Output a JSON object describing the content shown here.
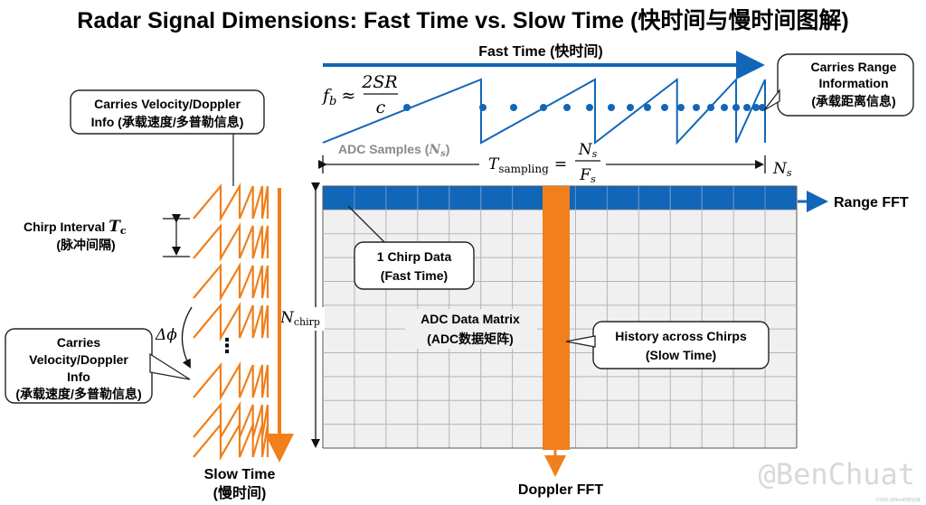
{
  "title": "Radar Signal Dimensions: Fast Time vs. Slow Time (快时间与慢时间图解)",
  "fast_time": {
    "label": "Fast Time (快时间)"
  },
  "formula_fb": {
    "lhs": "f",
    "sub": "b",
    "approx": "≈",
    "numerator": "2SR",
    "denominator": "c"
  },
  "adc_samples": {
    "label": "ADC Samples (",
    "symbol": "N",
    "sub": "s",
    "close": ")"
  },
  "t_sampling": {
    "lhs": "T",
    "sub": "sampling",
    "eq": "=",
    "num": "N",
    "num_sub": "s",
    "den": "F",
    "den_sub": "s"
  },
  "ns_label": {
    "symbol": "N",
    "sub": "s"
  },
  "range_callout": {
    "line1": "Carries Range",
    "line2": "Information",
    "line3": "(承载距离信息)"
  },
  "range_fft": "Range FFT",
  "velocity_callout_top": {
    "line1": "Carries Velocity/Doppler",
    "line2": "Info (承载速度/多普勒信息)"
  },
  "chirp_interval": {
    "line1": "Chirp Interval",
    "symbol": "T",
    "sub": "c",
    "line2": "(脉冲间隔)"
  },
  "delta_phi": {
    "symbol": "Δϕ"
  },
  "ellipsis": "⋮",
  "velocity_callout_bottom": {
    "line1": "Carries",
    "line2": "Velocity/Doppler",
    "line3": "Info",
    "line4": "(承载速度/多普勒信息)"
  },
  "slow_time": {
    "line1": "Slow Time",
    "line2": "(慢时间)"
  },
  "n_chirp": {
    "symbol": "N",
    "sub": "chirp"
  },
  "chirp_data_callout": {
    "line1": "1 Chirp Data",
    "line2": "(Fast Time)"
  },
  "matrix_label": {
    "line1": "ADC Data Matrix",
    "line2": "(ADC数据矩阵)"
  },
  "history_callout": {
    "line1": "History across Chirps",
    "line2": "(Slow Time)"
  },
  "doppler_fft": "Doppler FFT",
  "watermark": "@BenChuat",
  "tiny_mark": "CSDN @Ben的知识库",
  "matrix": {
    "columns": 15,
    "rows": 11,
    "highlight_row": 0,
    "highlight_col": 7
  },
  "colors": {
    "blue": "#1266b8",
    "orange": "#f07f1c",
    "grid_fill": "#f0f0f0",
    "grid_line": "#b5b5b5",
    "text": "#111111",
    "gray_text": "#8a8a8a"
  }
}
